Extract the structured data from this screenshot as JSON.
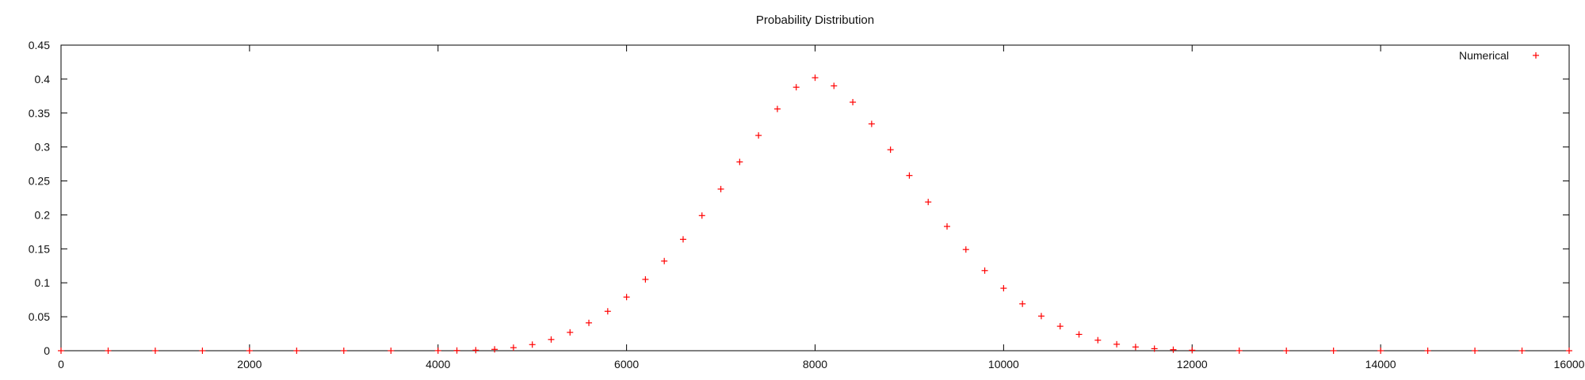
{
  "chart_data": {
    "type": "scatter",
    "title": "Probability Distribution",
    "xlabel": "",
    "ylabel": "",
    "xlim": [
      0,
      16000
    ],
    "ylim": [
      0,
      0.45
    ],
    "x_ticks": [
      "0",
      "2000",
      "4000",
      "6000",
      "8000",
      "10000",
      "12000",
      "14000",
      "16000"
    ],
    "y_ticks": [
      "0",
      "0.05",
      "0.1",
      "0.15",
      "0.2",
      "0.25",
      "0.3",
      "0.35",
      "0.4",
      "0.45"
    ],
    "grid": false,
    "legend": "top-right",
    "series": [
      {
        "name": "Numerical",
        "color": "#ff0000",
        "marker": "plus",
        "x": [
          0,
          500,
          1000,
          1500,
          2000,
          2500,
          3000,
          3500,
          4000,
          4200,
          4400,
          4600,
          4800,
          5000,
          5200,
          5400,
          5600,
          5800,
          6000,
          6200,
          6400,
          6600,
          6800,
          7000,
          7200,
          7400,
          7600,
          7800,
          8000,
          8200,
          8400,
          8600,
          8800,
          9000,
          9200,
          9400,
          9600,
          9800,
          10000,
          10200,
          10400,
          10600,
          10800,
          11000,
          11200,
          11400,
          11600,
          11800,
          12000,
          12500,
          13000,
          13500,
          14000,
          14500,
          15000,
          15500,
          16000
        ],
        "y": [
          0,
          0,
          0,
          0,
          0,
          0,
          0,
          0,
          0.0001,
          0.0003,
          0.0008,
          0.002,
          0.0045,
          0.009,
          0.0165,
          0.027,
          0.041,
          0.058,
          0.079,
          0.105,
          0.132,
          0.164,
          0.199,
          0.238,
          0.278,
          0.317,
          0.356,
          0.388,
          0.402,
          0.39,
          0.366,
          0.334,
          0.296,
          0.258,
          0.219,
          0.183,
          0.149,
          0.118,
          0.092,
          0.069,
          0.051,
          0.036,
          0.024,
          0.0155,
          0.0095,
          0.0055,
          0.003,
          0.0015,
          0.0007,
          0.0001,
          0,
          0,
          0,
          0,
          0,
          0,
          0
        ]
      }
    ]
  }
}
